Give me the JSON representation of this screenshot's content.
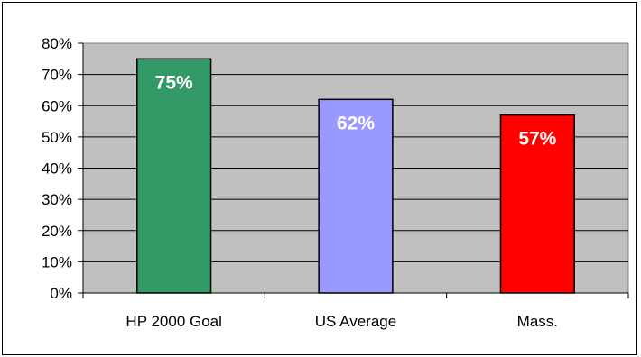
{
  "chart_data": {
    "type": "bar",
    "categories": [
      "HP 2000 Goal",
      "US Average",
      "Mass."
    ],
    "values": [
      75,
      62,
      57
    ],
    "data_labels": [
      "75%",
      "62%",
      "57%"
    ],
    "colors": [
      "#339966",
      "#9999FF",
      "#FF0000"
    ],
    "plot_background": "#C0C0C0",
    "ylim": [
      0,
      80
    ],
    "yticks": [
      0,
      10,
      20,
      30,
      40,
      50,
      60,
      70,
      80
    ],
    "ytick_labels": [
      "0%",
      "10%",
      "20%",
      "30%",
      "40%",
      "50%",
      "60%",
      "70%",
      "80%"
    ],
    "grid": true,
    "legend": false,
    "title": "",
    "xlabel": "",
    "ylabel": ""
  }
}
